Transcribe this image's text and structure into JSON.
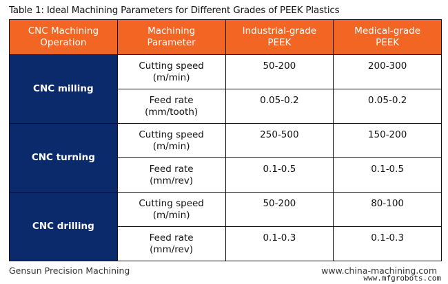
{
  "title": "Table 1: Ideal Machining Parameters for Different Grades of PEEK Plastics",
  "colors": {
    "header_bg": "#f26522",
    "operation_bg": "#0b2a6b"
  },
  "headers": [
    "CNC Machining\nOperation",
    "Machining\nParameter",
    "Industrial-grade\nPEEK",
    "Medical-grade\nPEEK"
  ],
  "operations": [
    {
      "name": "CNC milling",
      "rows": [
        {
          "parameter": "Cutting speed\n(m/min)",
          "industrial": "50-200",
          "medical": "200-300"
        },
        {
          "parameter": "Feed rate\n(mm/tooth)",
          "industrial": "0.05-0.2",
          "medical": "0.05-0.2"
        }
      ]
    },
    {
      "name": "CNC turning",
      "rows": [
        {
          "parameter": "Cutting speed\n(m/min)",
          "industrial": "250-500",
          "medical": "150-200"
        },
        {
          "parameter": "Feed rate\n(mm/rev)",
          "industrial": "0.1-0.5",
          "medical": "0.1-0.5"
        }
      ]
    },
    {
      "name": "CNC drilling",
      "rows": [
        {
          "parameter": "Cutting speed\n(m/min)",
          "industrial": "50-200",
          "medical": "80-100"
        },
        {
          "parameter": "Feed rate\n(mm/rev)",
          "industrial": "0.1-0.3",
          "medical": "0.1-0.3"
        }
      ]
    }
  ],
  "footer": {
    "left": "Gensun Precision Machining",
    "right": "www.china-machining.com"
  },
  "watermark": "www.mfgrobots.com"
}
